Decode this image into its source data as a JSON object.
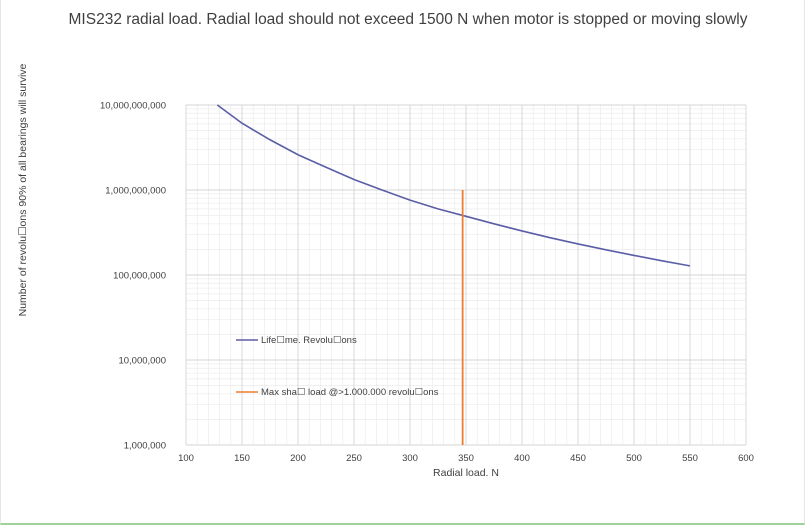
{
  "chart_data": {
    "type": "line",
    "title": "MIS232 radial load. Radial load should not exceed 1500 N when motor is stopped or moving slowly",
    "xlabel": "Radial load. N",
    "ylabel": "Number of revolu☐ons 90% of all bearings will survive",
    "xlim": [
      100,
      600
    ],
    "ylim": [
      1000000,
      10000000000
    ],
    "yscale": "log",
    "grid": true,
    "x_ticks": [
      100,
      150,
      200,
      250,
      300,
      350,
      400,
      450,
      500,
      550,
      600
    ],
    "x_tick_labels": [
      "100",
      "150",
      "200",
      "250",
      "300",
      "350",
      "400",
      "450",
      "500",
      "550",
      "600"
    ],
    "y_ticks": [
      1000000,
      10000000,
      100000000,
      1000000000,
      10000000000
    ],
    "y_tick_labels": [
      "1,000,000",
      "10,000,000",
      "100,000,000",
      "1,000,000,000",
      "10,000,000,000"
    ],
    "legend_placement": "inside-left",
    "series": [
      {
        "name": "Life☐me. Revolu☐ons",
        "color": "#5b5ea6",
        "x": [
          128,
          150,
          175,
          200,
          225,
          250,
          275,
          300,
          325,
          350,
          375,
          400,
          425,
          450,
          475,
          500,
          525,
          550
        ],
        "y": [
          10000000000,
          6100000000,
          3900000000,
          2600000000,
          1850000000,
          1330000000,
          1000000000,
          760000000,
          600000000,
          490000000,
          400000000,
          330000000,
          275000000,
          232000000,
          198000000,
          170000000,
          147000000,
          128000000
        ]
      },
      {
        "name": "Max sha☐ load @>1.000.000 revolu☐ons",
        "color": "#ed7d31",
        "x": [
          347,
          347
        ],
        "y": [
          1000000,
          1000000000
        ]
      }
    ]
  }
}
